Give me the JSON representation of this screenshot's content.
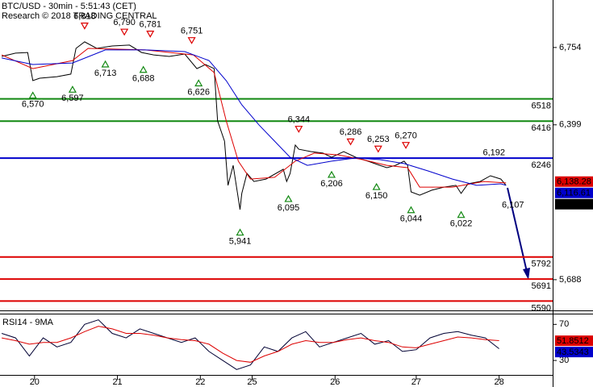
{
  "chart_data": [
    {
      "type": "line",
      "title": "BTC/USD - 30min - 5:51:43 (CET)",
      "subtitle": "Research © 2018 TRADING CENTRAL",
      "xlim": [
        0,
        320
      ],
      "ylim": [
        5547,
        6972
      ],
      "yticks": [
        {
          "value": 6754,
          "label": "6,754"
        },
        {
          "value": 6399,
          "label": "6,399"
        },
        {
          "value": 5688,
          "label": "5,688"
        }
      ],
      "series": [
        {
          "color": "#000000",
          "width": 1,
          "x": [
            1,
            9,
            16,
            19,
            23,
            33,
            41,
            44,
            49,
            56,
            65,
            75,
            82,
            89,
            98,
            107,
            114,
            119,
            124,
            126,
            130,
            132,
            135,
            139,
            140,
            143,
            147,
            154,
            164,
            166,
            168,
            171,
            173,
            180,
            187,
            192,
            199,
            206,
            213,
            220,
            224,
            229,
            234,
            236,
            238,
            243,
            250,
            257,
            264,
            267,
            271,
            278,
            284,
            290,
            293
          ],
          "values": [
            6713,
            6728,
            6731,
            6602,
            6613,
            6620,
            6632,
            6750,
            6780,
            6750,
            6761,
            6765,
            6731,
            6720,
            6713,
            6724,
            6657,
            6676,
            6657,
            6417,
            6324,
            6121,
            6213,
            6010,
            6084,
            6176,
            6139,
            6150,
            6195,
            6139,
            6176,
            6306,
            6287,
            6276,
            6269,
            6250,
            6276,
            6250,
            6232,
            6213,
            6202,
            6213,
            6232,
            6213,
            6091,
            6076,
            6099,
            6113,
            6121,
            6084,
            6128,
            6139,
            6165,
            6150,
            6121
          ]
        },
        {
          "color": "#dd0000",
          "width": 1,
          "x": [
            1,
            19,
            42,
            51,
            84,
            112,
            124,
            131,
            138,
            145,
            159,
            171,
            182,
            196,
            210,
            224,
            236,
            243,
            262,
            280,
            293
          ],
          "values": [
            6720,
            6657,
            6694,
            6750,
            6743,
            6720,
            6639,
            6417,
            6232,
            6150,
            6158,
            6232,
            6269,
            6261,
            6239,
            6213,
            6202,
            6113,
            6113,
            6139,
            6132
          ]
        },
        {
          "color": "#0000cc",
          "width": 1,
          "x": [
            1,
            19,
            42,
            61,
            84,
            107,
            121,
            131,
            140,
            150,
            159,
            168,
            178,
            192,
            206,
            220,
            234,
            248,
            262,
            276,
            290,
            293
          ],
          "values": [
            6706,
            6676,
            6683,
            6743,
            6743,
            6735,
            6694,
            6602,
            6491,
            6398,
            6324,
            6250,
            6213,
            6232,
            6247,
            6239,
            6221,
            6187,
            6150,
            6121,
            6128,
            6121
          ]
        }
      ],
      "levels": [
        {
          "value": 6518,
          "label": "6518",
          "color": "#118811"
        },
        {
          "value": 6416,
          "label": "6416",
          "color": "#118811"
        },
        {
          "value": 6246,
          "label": "6246",
          "color": "#0000cc"
        },
        {
          "value": 5792,
          "label": "5792",
          "color": "#dd0000"
        },
        {
          "value": 5691,
          "label": "5691",
          "color": "#dd0000"
        },
        {
          "value": 5590,
          "label": "5590",
          "color": "#dd0000"
        }
      ],
      "annotations": [
        {
          "x": 49,
          "value": 6818,
          "label": "6,818",
          "side": "above",
          "marker": true
        },
        {
          "x": 72,
          "value": 6790,
          "label": "6,790",
          "side": "above",
          "marker": true
        },
        {
          "x": 87,
          "value": 6781,
          "label": "6,781",
          "side": "above",
          "marker": true
        },
        {
          "x": 111,
          "value": 6751,
          "label": "6,751",
          "side": "above",
          "marker": true
        },
        {
          "x": 173,
          "value": 6344,
          "label": "6,344",
          "side": "above",
          "marker": true
        },
        {
          "x": 203,
          "value": 6286,
          "label": "6,286",
          "side": "above",
          "marker": true
        },
        {
          "x": 219,
          "value": 6253,
          "label": "6,253",
          "side": "above",
          "marker": true
        },
        {
          "x": 235,
          "value": 6270,
          "label": "6,270",
          "side": "above",
          "marker": true
        },
        {
          "x": 286,
          "value": 6192,
          "label": "6,192",
          "side": "above",
          "marker": false
        },
        {
          "x": 297,
          "value": 6107,
          "label": "6,107",
          "side": "below",
          "marker": false
        },
        {
          "x": 19,
          "value": 6570,
          "label": "6,570",
          "side": "below",
          "marker": true
        },
        {
          "x": 42,
          "value": 6597,
          "label": "6,597",
          "side": "below",
          "marker": true
        },
        {
          "x": 61,
          "value": 6713,
          "label": "6,713",
          "side": "below",
          "marker": true
        },
        {
          "x": 83,
          "value": 6688,
          "label": "6,688",
          "side": "below",
          "marker": true
        },
        {
          "x": 115,
          "value": 6626,
          "label": "6,626",
          "side": "below",
          "marker": true
        },
        {
          "x": 139,
          "value": 5941,
          "label": "5,941",
          "side": "below",
          "marker": true
        },
        {
          "x": 167,
          "value": 6095,
          "label": "6,095",
          "side": "below",
          "marker": true
        },
        {
          "x": 192,
          "value": 6206,
          "label": "6,206",
          "side": "below",
          "marker": true
        },
        {
          "x": 218,
          "value": 6150,
          "label": "6,150",
          "side": "below",
          "marker": true
        },
        {
          "x": 238,
          "value": 6044,
          "label": "6,044",
          "side": "below",
          "marker": true
        },
        {
          "x": 267,
          "value": 6022,
          "label": "6,022",
          "side": "below",
          "marker": true
        }
      ],
      "last_values": [
        {
          "value": 6138.28,
          "label": "6,138.28",
          "color": "#dd0000"
        },
        {
          "value": 6116.61,
          "label": "6,116.61",
          "color": "#0000cc"
        },
        {
          "value": 6112.63,
          "label": "6,112.63",
          "color": "#000000"
        }
      ]
    },
    {
      "type": "line",
      "title": "RSI14 - 9MA",
      "xlim": [
        0,
        320
      ],
      "ylim": [
        14,
        81
      ],
      "yticks": [
        70,
        30
      ],
      "xticks": [
        {
          "value": 20,
          "label": "20"
        },
        {
          "value": 68,
          "label": "21"
        },
        {
          "value": 116,
          "label": "22"
        },
        {
          "value": 146,
          "label": "25"
        },
        {
          "value": 194,
          "label": "26"
        },
        {
          "value": 241,
          "label": "27"
        },
        {
          "value": 289,
          "label": "28"
        }
      ],
      "series": [
        {
          "color": "#000033",
          "width": 1,
          "x": [
            1,
            9,
            17,
            25,
            33,
            41,
            49,
            57,
            65,
            73,
            81,
            89,
            97,
            105,
            113,
            121,
            129,
            137,
            145,
            153,
            161,
            169,
            177,
            185,
            193,
            201,
            209,
            217,
            225,
            233,
            241,
            249,
            257,
            265,
            273,
            281,
            289
          ],
          "values": [
            60,
            55,
            35,
            55,
            45,
            50,
            70,
            75,
            60,
            55,
            65,
            60,
            55,
            50,
            55,
            40,
            30,
            20,
            25,
            45,
            40,
            55,
            62,
            45,
            50,
            55,
            60,
            48,
            52,
            40,
            42,
            55,
            60,
            62,
            58,
            55,
            43
          ]
        },
        {
          "color": "#dd0000",
          "width": 1,
          "x": [
            1,
            9,
            17,
            25,
            33,
            41,
            49,
            57,
            65,
            73,
            81,
            89,
            97,
            105,
            113,
            121,
            129,
            137,
            145,
            153,
            161,
            169,
            177,
            185,
            193,
            201,
            209,
            217,
            225,
            233,
            241,
            249,
            257,
            265,
            273,
            281,
            289
          ],
          "values": [
            55,
            52,
            48,
            50,
            50,
            55,
            62,
            68,
            65,
            60,
            60,
            58,
            55,
            53,
            52,
            48,
            38,
            30,
            28,
            35,
            40,
            48,
            52,
            50,
            50,
            53,
            55,
            52,
            50,
            45,
            44,
            48,
            52,
            56,
            55,
            53,
            52
          ]
        }
      ],
      "last_values": [
        {
          "value": 51.8512,
          "label": "51.8512",
          "color": "#dd0000"
        },
        {
          "value": 43.5343,
          "label": "43.5343",
          "color": "#0000cc"
        }
      ]
    }
  ]
}
